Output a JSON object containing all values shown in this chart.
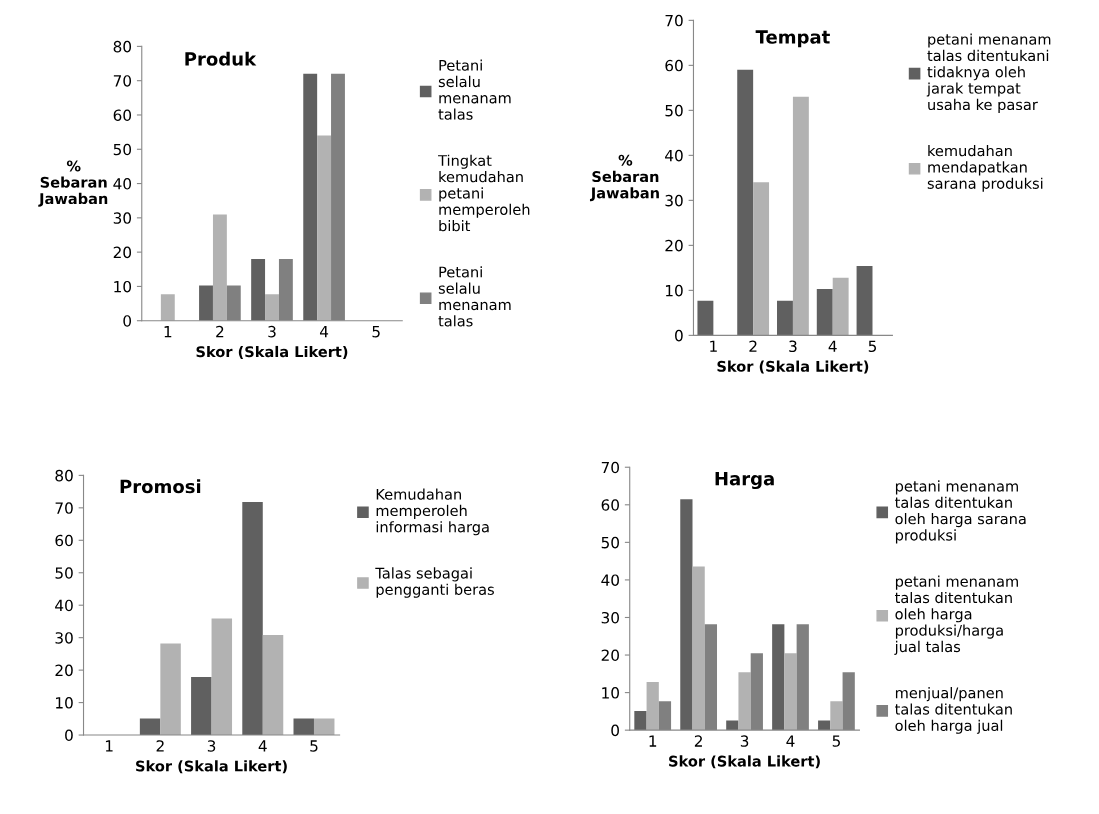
{
  "chart_data": [
    {
      "type": "bar",
      "title": "Produk",
      "xlabel": "Skor (Skala Likert)",
      "ylabel": "%\nSebaran\nJawaban",
      "categories": [
        "1",
        "2",
        "3",
        "4",
        "5"
      ],
      "ylim": [
        0,
        80
      ],
      "yticks": [
        0,
        10,
        20,
        30,
        40,
        50,
        60,
        70,
        80
      ],
      "grid": false,
      "legend": "right",
      "series": [
        {
          "name": "Petani selalu menanam talas",
          "color": "#606060",
          "values": [
            0,
            10.3,
            18,
            72,
            0
          ]
        },
        {
          "name": "Tingkat kemudahan petani memperoleh bibit",
          "color": "#b2b2b2",
          "values": [
            7.7,
            31,
            7.7,
            54,
            0
          ]
        },
        {
          "name": "Petani selalu menanam talas",
          "color": "#808080",
          "values": [
            0,
            10.3,
            18,
            72,
            0
          ]
        }
      ]
    },
    {
      "type": "bar",
      "title": "Tempat",
      "xlabel": "Skor (Skala Likert)",
      "ylabel": "%\nSebaran\nJawaban",
      "categories": [
        "1",
        "2",
        "3",
        "4",
        "5"
      ],
      "ylim": [
        0,
        70
      ],
      "yticks": [
        0,
        10,
        20,
        30,
        40,
        50,
        60,
        70
      ],
      "grid": false,
      "legend": "right",
      "series": [
        {
          "name": "petani menanam talas ditentukani tidaknya oleh jarak tempat usaha ke pasar",
          "color": "#606060",
          "values": [
            7.7,
            59,
            7.7,
            10.3,
            15.4
          ]
        },
        {
          "name": "kemudahan mendapatkan sarana produksi",
          "color": "#b2b2b2",
          "values": [
            0,
            34,
            53,
            12.8,
            0
          ]
        }
      ]
    },
    {
      "type": "bar",
      "title": "Promosi",
      "xlabel": "Skor (Skala Likert)",
      "categories": [
        "1",
        "2",
        "3",
        "4",
        "5"
      ],
      "ylim": [
        0,
        80
      ],
      "yticks": [
        0,
        10,
        20,
        30,
        40,
        50,
        60,
        70,
        80
      ],
      "grid": false,
      "legend": "right",
      "series": [
        {
          "name": "Kemudahan memperoleh informasi harga",
          "color": "#606060",
          "values": [
            0,
            5.1,
            17.9,
            71.8,
            5.1
          ]
        },
        {
          "name": "Talas sebagai pengganti beras",
          "color": "#b2b2b2",
          "values": [
            0,
            28.2,
            35.9,
            30.8,
            5.1
          ]
        }
      ]
    },
    {
      "type": "bar",
      "title": "Harga",
      "xlabel": "Skor (Skala Likert)",
      "categories": [
        "1",
        "2",
        "3",
        "4",
        "5"
      ],
      "ylim": [
        0,
        70
      ],
      "yticks": [
        0,
        10,
        20,
        30,
        40,
        50,
        60,
        70
      ],
      "grid": false,
      "legend": "right",
      "series": [
        {
          "name": "petani menanam talas ditentukan oleh harga sarana produksi",
          "color": "#606060",
          "values": [
            5.1,
            61.5,
            2.6,
            28.2,
            2.6
          ]
        },
        {
          "name": "petani menanam talas ditentukan oleh harga produksi/harga jual talas",
          "color": "#b2b2b2",
          "values": [
            12.8,
            43.6,
            15.4,
            20.5,
            7.7
          ]
        },
        {
          "name": "menjual/panen talas ditentukan oleh harga jual",
          "color": "#808080",
          "values": [
            7.7,
            28.2,
            20.5,
            28.2,
            15.4
          ]
        }
      ]
    }
  ]
}
